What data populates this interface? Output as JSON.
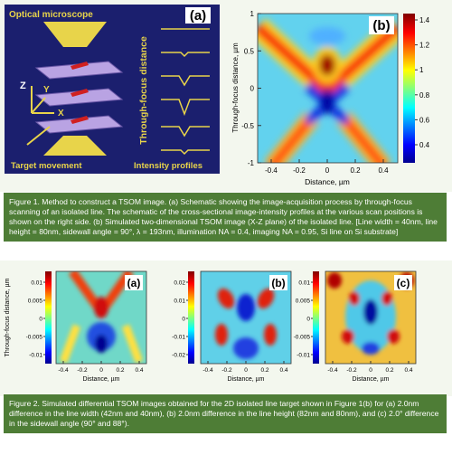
{
  "figure1": {
    "panel_a": {
      "title": "Optical microscope",
      "label": "(a)",
      "axis_z": "Z",
      "axis_y": "Y",
      "axis_x": "X",
      "vertical_label": "Through-focus distance",
      "bottom_left": "Target movement",
      "bottom_right": "Intensity profiles"
    },
    "panel_b": {
      "label": "(b)",
      "y_label": "Through-focus distance, µm",
      "x_label": "Distance, µm",
      "yticks": [
        1,
        0.5,
        0,
        -0.5,
        -1
      ],
      "xticks": [
        -0.4,
        -0.2,
        0,
        0.2,
        0.4
      ],
      "colorbar_ticks": [
        1.4,
        1.2,
        1,
        0.8,
        0.6,
        0.4
      ]
    },
    "caption": "Figure 1. Method to construct a TSOM image. (a) Schematic showing the image-acquisition process by through-focus scanning of an isolated line. The schematic of the cross-sectional image-intensity profiles at the various scan positions is shown on the right side. (b) Simulated two-dimensional TSOM image (X-Z plane) of the isolated line. [Line width = 40nm, line height = 80nm, sidewall angle = 90°, λ = 193nm, illumination NA = 0.4, imaging NA = 0.95, Si line on Si substrate]"
  },
  "figure2": {
    "y_label": "Through-focus distance, µm",
    "x_label": "Distance, µm",
    "xticks": [
      -0.4,
      -0.2,
      0,
      0.2,
      0.4
    ],
    "panels": [
      {
        "label": "(a)",
        "colorbar_ticks": [
          0.01,
          0.005,
          0,
          -0.005,
          -0.01
        ]
      },
      {
        "label": "(b)",
        "colorbar_ticks": [
          0.02,
          0.01,
          0,
          -0.01,
          -0.02
        ]
      },
      {
        "label": "(c)",
        "colorbar_ticks": [
          0.01,
          0.005,
          0,
          -0.005,
          -0.01
        ]
      }
    ],
    "caption": "Figure 2. Simulated differential TSOM images obtained for the 2D isolated line target shown in Figure 1(b) for (a) 2.0nm difference in the line width (42nm and 40nm), (b) 2.0nm difference in the line height (82nm and 80nm), and (c) 2.0° difference in the sidewall angle (90° and 88°)."
  }
}
